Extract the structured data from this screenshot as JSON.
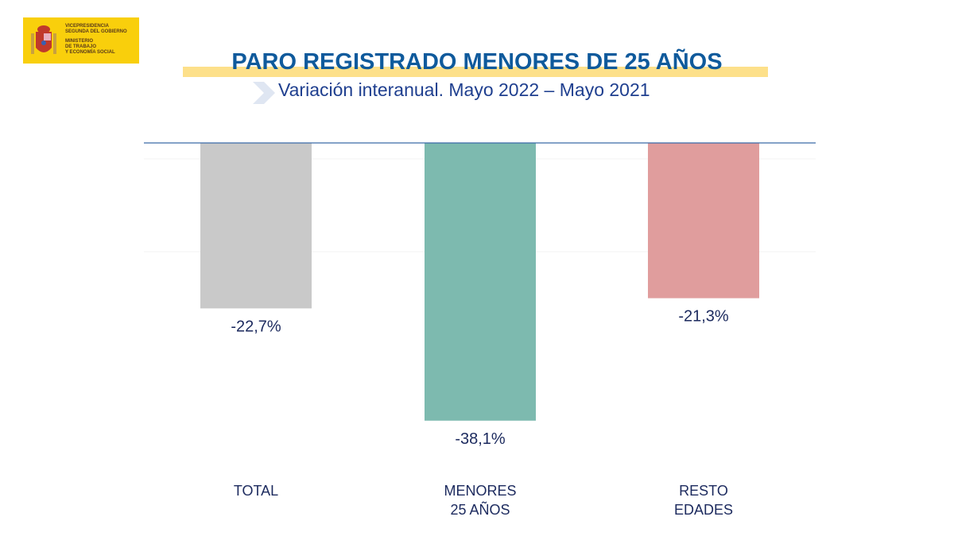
{
  "logo": {
    "line1": "VICEPRESIDENCIA",
    "line2": "SEGUNDA DEL GOBIERNO",
    "line3": "MINISTERIO",
    "line4": "DE TRABAJO",
    "line5": "Y ECONOMÍA SOCIAL"
  },
  "header": {
    "title": "PARO REGISTRADO MENORES DE 25 AÑOS",
    "subtitle": "Variación interanual. Mayo 2022 – Mayo 2021"
  },
  "colors": {
    "total": "#c9c9c9",
    "menores": "#7dbaaf",
    "resto": "#e09d9d",
    "axis": "#3b6aa8"
  },
  "chart_data": {
    "type": "bar",
    "title": "PARO REGISTRADO MENORES DE 25 AÑOS",
    "subtitle": "Variación interanual. Mayo 2022 – Mayo 2021",
    "categories": [
      [
        "TOTAL"
      ],
      [
        "MENORES",
        "25 AÑOS"
      ],
      [
        "RESTO",
        "EDADES"
      ]
    ],
    "values": [
      -22.7,
      -38.1,
      -21.3
    ],
    "labels": [
      "-22,7%",
      "-38,1%",
      "-21,3%"
    ],
    "unit": "%",
    "ylim": [
      -45,
      0
    ]
  }
}
